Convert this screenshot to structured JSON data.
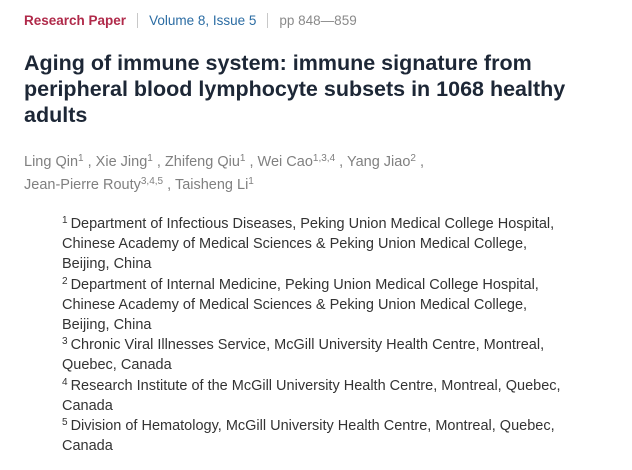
{
  "header": {
    "article_type": "Research Paper",
    "issue": "Volume 8, Issue 5",
    "pages": "pp 848—859"
  },
  "title": "Aging of immune system: immune signature from peripheral blood lymphocyte subsets in 1068 healthy adults",
  "authors": [
    {
      "name": "Ling Qin",
      "sup": "1",
      "sep": " , "
    },
    {
      "name": "Xie Jing",
      "sup": "1",
      "sep": " , "
    },
    {
      "name": "Zhifeng Qiu",
      "sup": "1",
      "sep": " , "
    },
    {
      "name": "Wei Cao",
      "sup": "1,3,4",
      "sep": " , "
    },
    {
      "name": "Yang Jiao",
      "sup": "2",
      "sep": " , "
    },
    {
      "name": "Jean-Pierre Routy",
      "sup": "3,4,5",
      "sep": " , "
    },
    {
      "name": "Taisheng Li",
      "sup": "1",
      "sep": ""
    }
  ],
  "affiliations": [
    {
      "num": "1",
      "lines": [
        "Department of Infectious Diseases, Peking Union Medical College Hospital,",
        "Chinese Academy of Medical Sciences & Peking Union Medical College,",
        "Beijing, China"
      ]
    },
    {
      "num": "2",
      "lines": [
        "Department of Internal Medicine, Peking Union Medical College Hospital,",
        "Chinese Academy of Medical Sciences & Peking Union Medical College,",
        "Beijing, China"
      ]
    },
    {
      "num": "3",
      "lines": [
        "Chronic Viral Illnesses Service, McGill University Health Centre, Montreal,",
        "Quebec, Canada"
      ]
    },
    {
      "num": "4",
      "lines": [
        "Research Institute of the McGill University Health Centre, Montreal, Quebec,",
        "Canada"
      ]
    },
    {
      "num": "5",
      "lines": [
        "Division of Hematology, McGill University Health Centre, Montreal, Quebec,",
        "Canada"
      ]
    }
  ]
}
